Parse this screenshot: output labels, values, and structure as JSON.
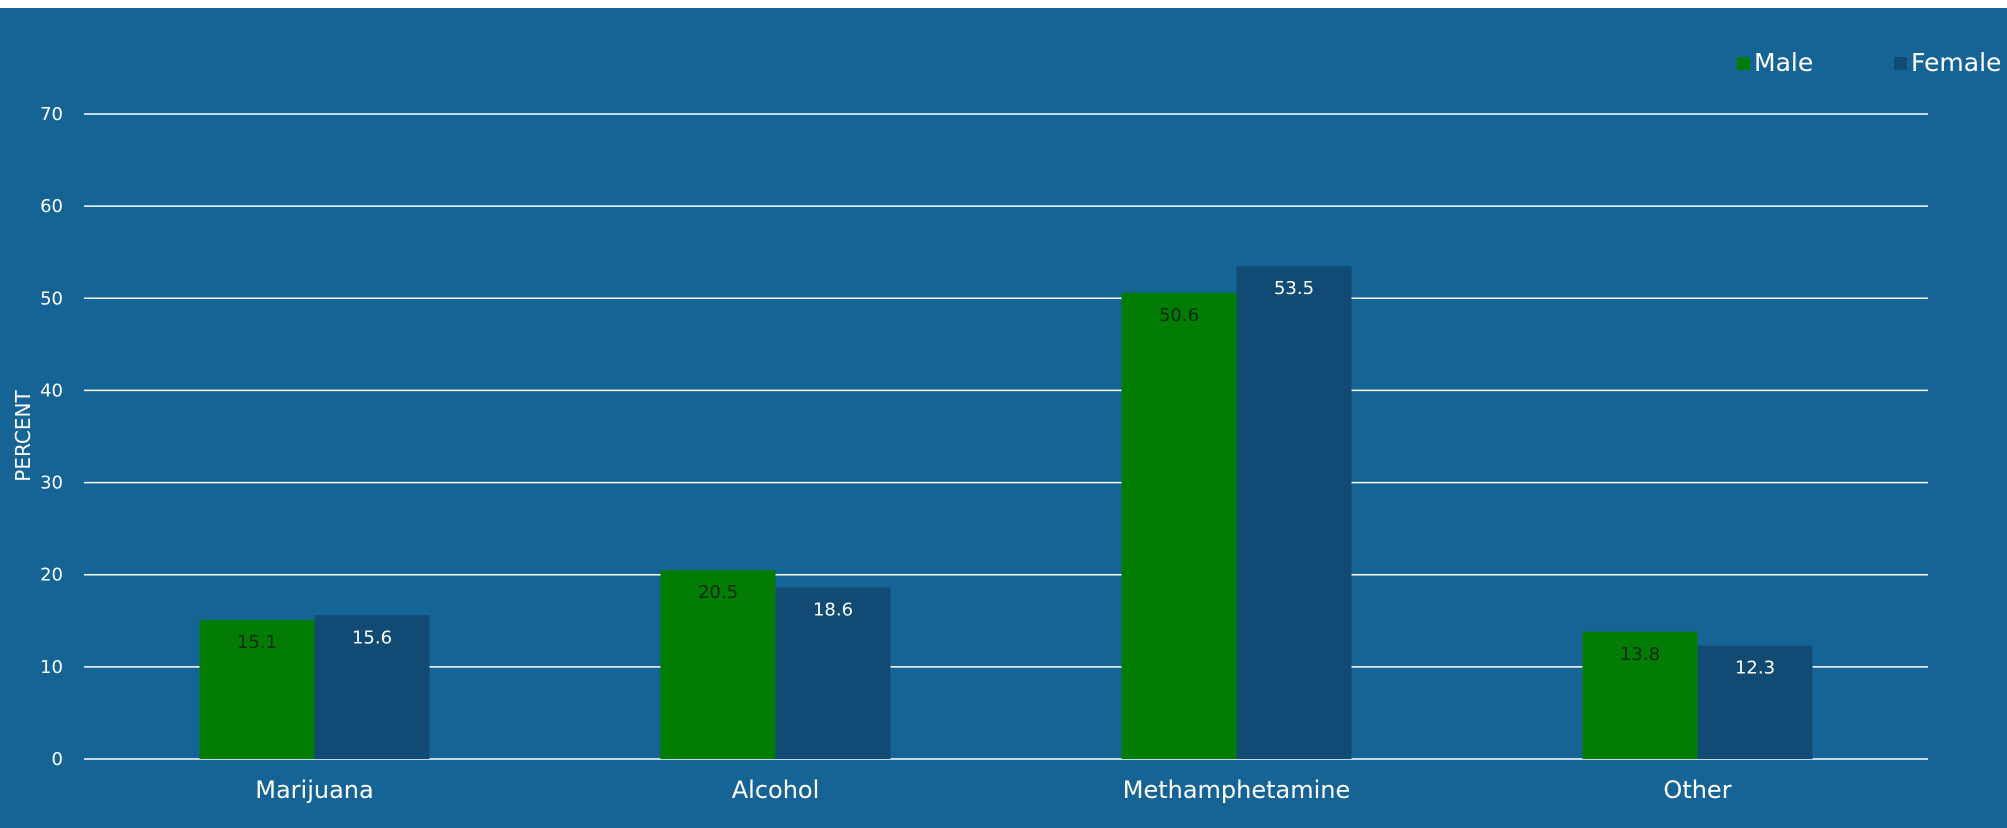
{
  "chart_data": {
    "type": "bar",
    "title": "",
    "xlabel": "",
    "ylabel": "PERCENT",
    "categories": [
      "Marijuana",
      "Alcohol",
      "Methamphetamine",
      "Other"
    ],
    "series": [
      {
        "name": "Male",
        "values": [
          15.1,
          20.5,
          50.6,
          13.8
        ],
        "color": "#037c03",
        "label_color": "#0d2a12"
      },
      {
        "name": "Female",
        "values": [
          15.6,
          18.6,
          53.5,
          12.3
        ],
        "color": "#114a72",
        "label_color": "#ffffff"
      }
    ],
    "ylim": [
      0,
      70
    ],
    "yticks": [
      0,
      10,
      20,
      30,
      40,
      50,
      60,
      70
    ],
    "grid": true,
    "legend_position": "top-right",
    "background_color": "#166496",
    "grid_color": "#ffffff"
  }
}
